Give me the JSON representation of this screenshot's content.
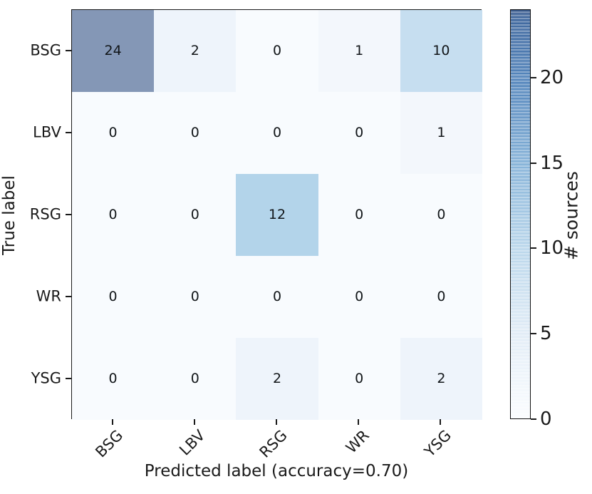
{
  "figure": {
    "background_color": "#ffffff",
    "text_color": "#1a1a1a",
    "spine_color": "#1a1a1a"
  },
  "chart_data": {
    "type": "heatmap",
    "subtype": "confusion-matrix",
    "title": "",
    "xlabel": "Predicted label (accuracy=0.70)",
    "ylabel": "True label",
    "x_categories": [
      "BSG",
      "LBV",
      "RSG",
      "WR",
      "YSG"
    ],
    "y_categories": [
      "BSG",
      "LBV",
      "RSG",
      "WR",
      "YSG"
    ],
    "matrix": [
      [
        24,
        2,
        0,
        1,
        10
      ],
      [
        0,
        0,
        0,
        0,
        1
      ],
      [
        0,
        0,
        12,
        0,
        0
      ],
      [
        0,
        0,
        0,
        0,
        0
      ],
      [
        0,
        0,
        2,
        0,
        2
      ]
    ],
    "accuracy": "0.70",
    "colormap": "Blues",
    "grid": false,
    "value_colors": {
      "0": "#f8fbfe",
      "1": "#f3f7fc",
      "2": "#eef4fb",
      "10": "#c6def0",
      "12": "#b3d4ea",
      "24": "#8497b6"
    },
    "colorbar": {
      "label": "# sources",
      "ticks": [
        0,
        5,
        10,
        15,
        20
      ],
      "vmin": 0,
      "vmax": 24,
      "position": "right",
      "top_color": "#41699f",
      "bottom_color": "#fbfdff"
    }
  }
}
